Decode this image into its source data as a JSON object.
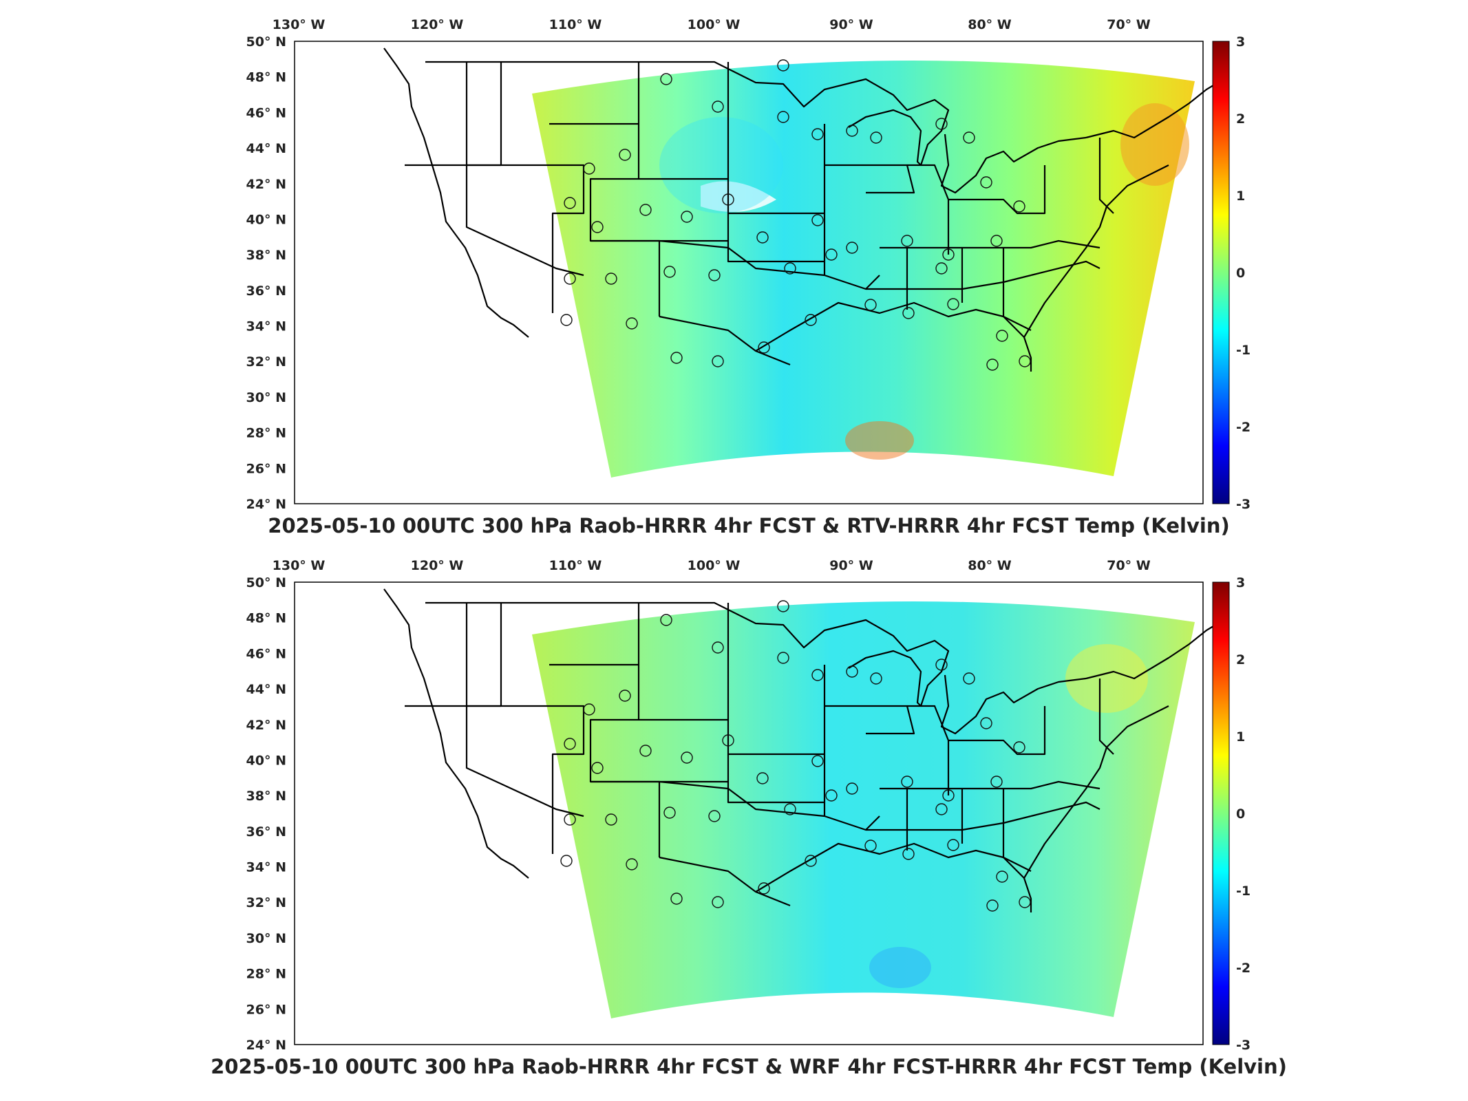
{
  "colorbar_colors": [
    "#00007f",
    "#0000ff",
    "#007fff",
    "#00ffff",
    "#7fff7f",
    "#ffff00",
    "#ff7f00",
    "#ff0000",
    "#7f0000"
  ],
  "panels": [
    {
      "title": "2025-05-10 00UTC 300 hPa Raob-HRRR 4hr FCST & RTV-HRRR 4hr FCST Temp (Kelvin)",
      "lon_ticks": [
        "130° W",
        "120° W",
        "110° W",
        "100° W",
        "90° W",
        "80° W",
        "70° W"
      ],
      "lat_ticks": [
        "50° N",
        "48° N",
        "46° N",
        "44° N",
        "42° N",
        "40° N",
        "38° N",
        "36° N",
        "34° N",
        "32° N",
        "30° N",
        "28° N",
        "26° N",
        "24° N"
      ],
      "colorbar_ticks": [
        "3",
        "2",
        "1",
        "0",
        "-1",
        "-2",
        "-3"
      ],
      "colorbar_range": [
        -3,
        3
      ]
    },
    {
      "title": "2025-05-10 00UTC 300 hPa Raob-HRRR 4hr FCST & WRF 4hr FCST-HRRR 4hr FCST Temp (Kelvin)",
      "lon_ticks": [
        "130° W",
        "120° W",
        "110° W",
        "100° W",
        "90° W",
        "80° W",
        "70° W"
      ],
      "lat_ticks": [
        "50° N",
        "48° N",
        "46° N",
        "44° N",
        "42° N",
        "40° N",
        "38° N",
        "36° N",
        "34° N",
        "32° N",
        "30° N",
        "28° N",
        "26° N",
        "24° N"
      ],
      "colorbar_ticks": [
        "3",
        "2",
        "1",
        "0",
        "-1",
        "-2",
        "-3"
      ],
      "colorbar_range": [
        -3,
        3
      ]
    }
  ]
}
